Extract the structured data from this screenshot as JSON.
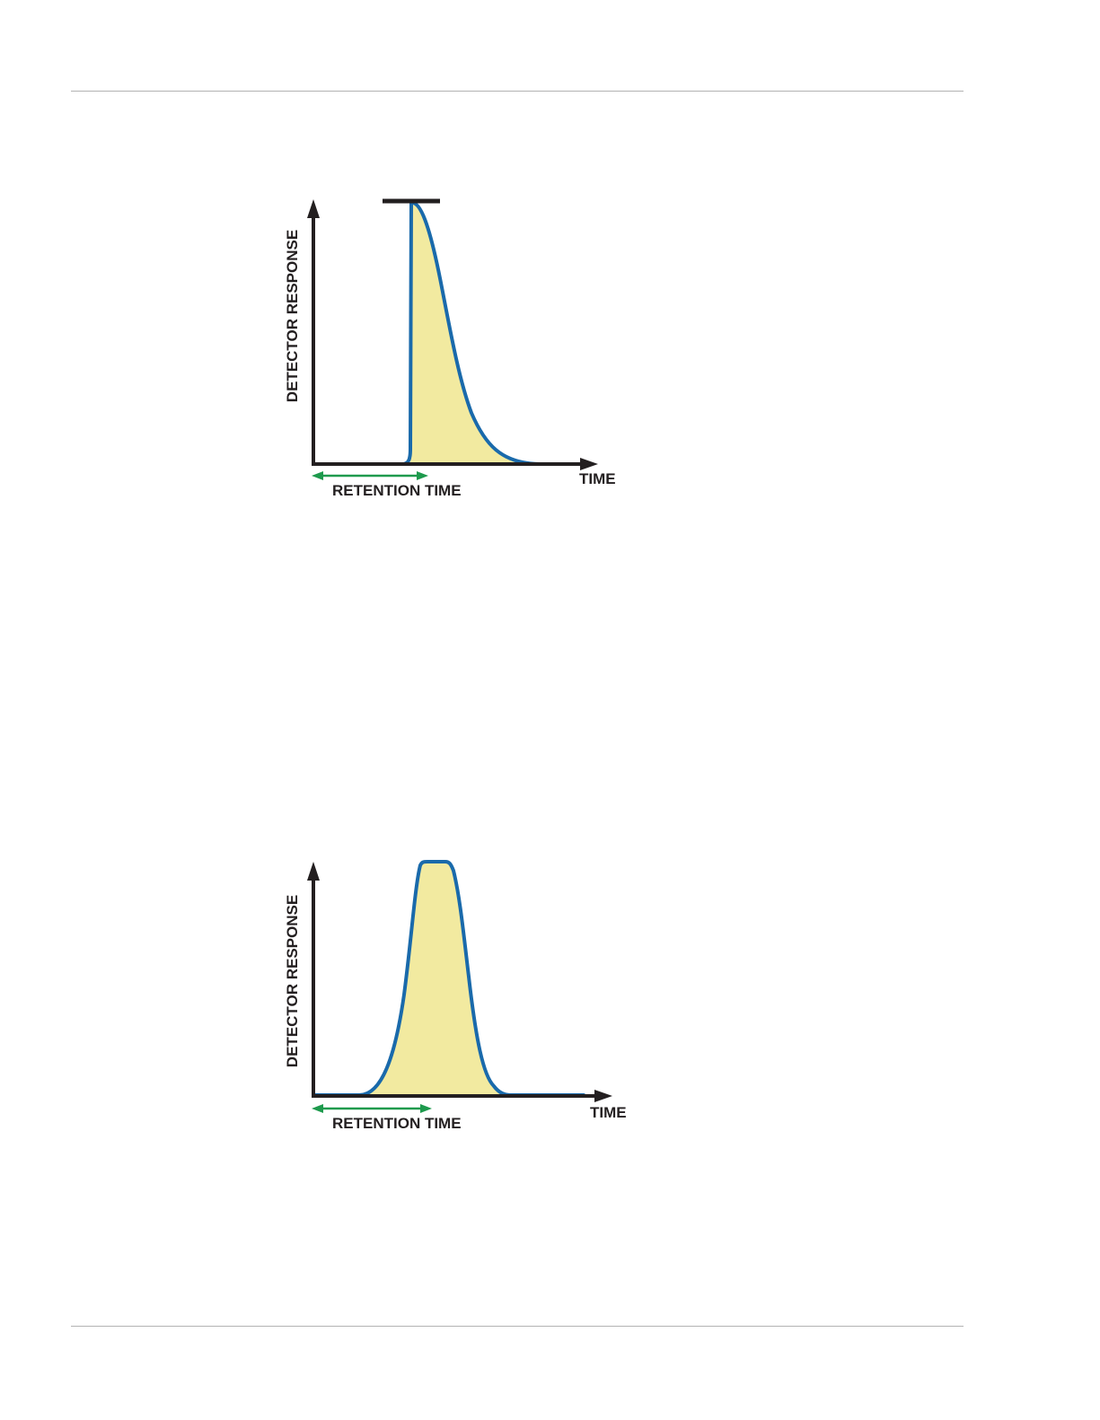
{
  "figures": [
    {
      "ylabel": "DETECTOR RESPONSE",
      "xlabel": "TIME",
      "annotation": "RETENTION TIME"
    },
    {
      "ylabel": "DETECTOR RESPONSE",
      "xlabel": "TIME",
      "annotation": "RETENTION TIME"
    }
  ],
  "colors": {
    "axis": "#231f20",
    "peak_line": "#1a6aab",
    "peak_fill": "#f2eaa0",
    "retention_arrow": "#1e9a4d",
    "page_rule": "#b3b3b3"
  }
}
